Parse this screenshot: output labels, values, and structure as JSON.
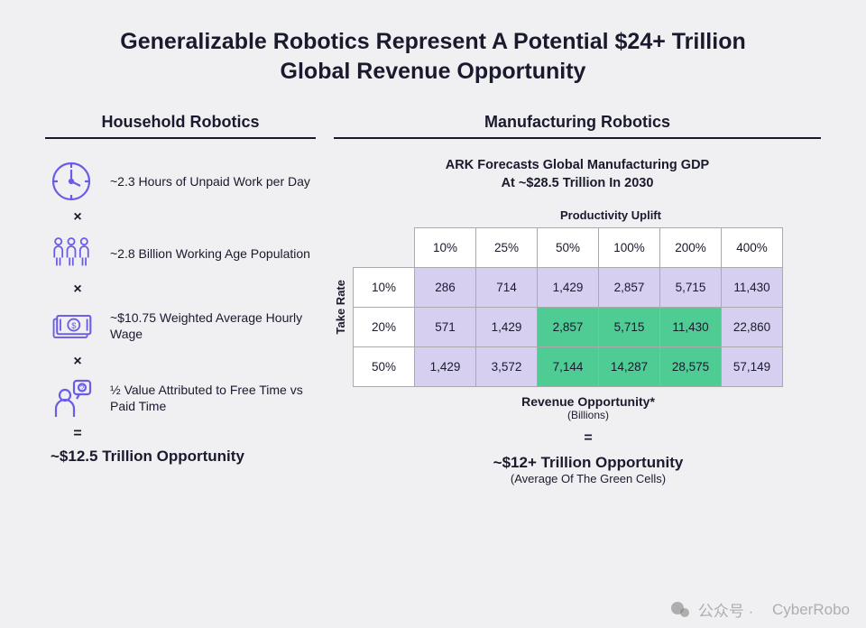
{
  "title_line1": "Generalizable Robotics Represent A Potential $24+ Trillion",
  "title_line2": "Global Revenue Opportunity",
  "colors": {
    "background": "#f0f0f2",
    "text": "#1a1a2e",
    "icon_stroke": "#6b5ce7",
    "cell_light": "#d6cff0",
    "cell_green": "#4fcb94",
    "cell_border": "#aaaaaa",
    "watermark": "rgba(120,120,120,0.55)"
  },
  "household": {
    "title": "Household Robotics",
    "items": [
      {
        "icon": "clock",
        "text": "~2.3 Hours of Unpaid Work per Day"
      },
      {
        "icon": "people",
        "text": "~2.8 Billion Working Age Population"
      },
      {
        "icon": "money",
        "text": "~$10.75 Weighted Average Hourly Wage"
      },
      {
        "icon": "half",
        "text": "½ Value Attributed to Free Time vs Paid Time"
      }
    ],
    "operator": "×",
    "equals": "=",
    "result": "~$12.5 Trillion Opportunity"
  },
  "manufacturing": {
    "title": "Manufacturing Robotics",
    "forecast_line1": "ARK Forecasts Global Manufacturing GDP",
    "forecast_line2": "At ~$28.5 Trillion In 2030",
    "productivity_label": "Productivity Uplift",
    "take_rate_label": "Take Rate",
    "col_headers": [
      "10%",
      "25%",
      "50%",
      "100%",
      "200%",
      "400%"
    ],
    "row_headers": [
      "10%",
      "20%",
      "50%"
    ],
    "cells": [
      [
        "286",
        "714",
        "1,429",
        "2,857",
        "5,715",
        "11,430"
      ],
      [
        "571",
        "1,429",
        "2,857",
        "5,715",
        "11,430",
        "22,860"
      ],
      [
        "1,429",
        "3,572",
        "7,144",
        "14,287",
        "28,575",
        "57,149"
      ]
    ],
    "green_cells": [
      [
        false,
        false,
        false,
        false,
        false,
        false
      ],
      [
        false,
        false,
        true,
        true,
        true,
        false
      ],
      [
        false,
        false,
        true,
        true,
        true,
        false
      ]
    ],
    "revenue_label": "Revenue Opportunity*",
    "revenue_sub": "(Billions)",
    "equals": "=",
    "result": "~$12+ Trillion Opportunity",
    "result_sub": "(Average Of The Green Cells)"
  },
  "watermark": {
    "prefix": "公众号 ·",
    "name": "CyberRobo"
  }
}
